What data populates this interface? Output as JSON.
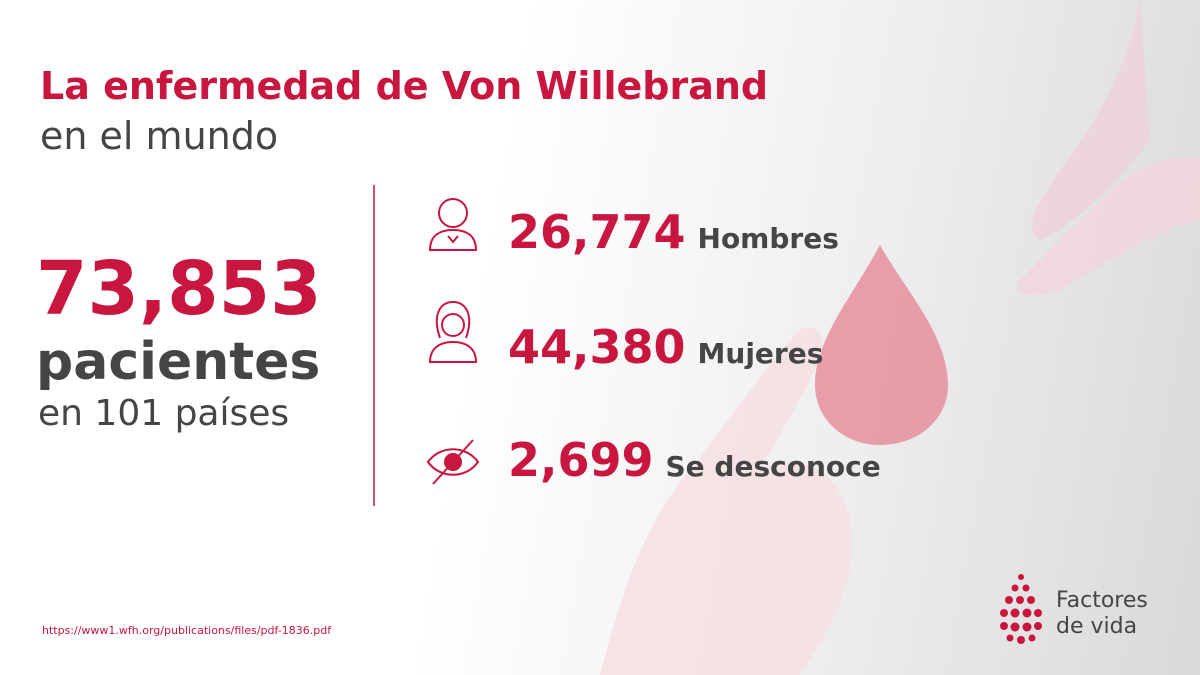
{
  "header": {
    "title": "La enfermedad de Von Willebrand",
    "subtitle": "en el mundo"
  },
  "total": {
    "number": "73,853",
    "unit": "pacientes",
    "scope": "en 101 países"
  },
  "stats": [
    {
      "number": "26,774",
      "label": "Hombres"
    },
    {
      "number": "44,380",
      "label": "Mujeres"
    },
    {
      "number": "2,699",
      "label": "Se desconoce"
    }
  ],
  "source": "https://www1.wfh.org/publications/files/pdf-1836.pdf",
  "logo": {
    "line1": "Factores",
    "line2": "de vida"
  }
}
